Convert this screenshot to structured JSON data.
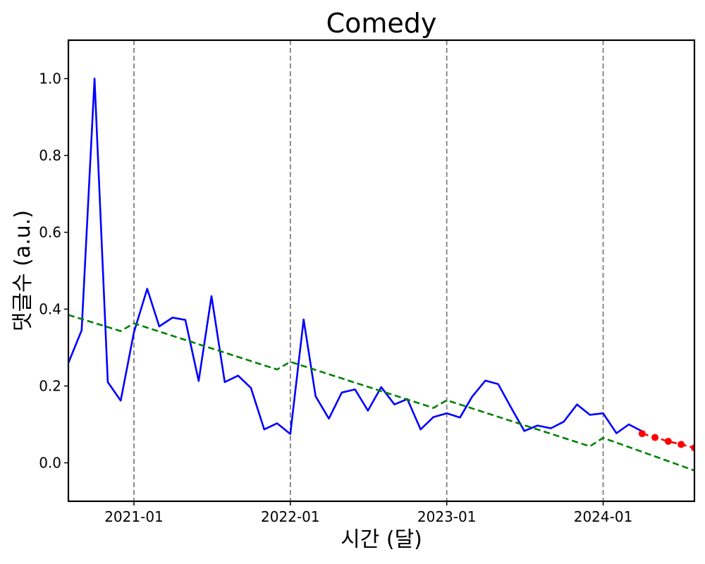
{
  "chart_data": {
    "type": "line",
    "title": "Comedy",
    "xlabel": "시간 (달)",
    "ylabel": "댓글수 (a.u.)",
    "xlim": [
      "2020-08-01",
      "2024-08-01"
    ],
    "ylim": [
      -0.1,
      1.1
    ],
    "y_ticks": [
      "0.0",
      "0.2",
      "0.4",
      "0.6",
      "0.8",
      "1.0"
    ],
    "x_ticks": [
      "2021-01",
      "2022-01",
      "2023-01",
      "2024-01"
    ],
    "vlines": [
      "2021-01",
      "2022-01",
      "2023-01",
      "2024-01"
    ],
    "grid": false,
    "legend": "none",
    "colors": {
      "observed": "#0000ff",
      "trend": "#008000",
      "forecast": "#ff0000",
      "vline": "#808080"
    },
    "series": [
      {
        "role": "observed",
        "style": "solid",
        "x": [
          "2020-08",
          "2020-09",
          "2020-10",
          "2020-11",
          "2020-12",
          "2021-01",
          "2021-02",
          "2021-03",
          "2021-04",
          "2021-05",
          "2021-06",
          "2021-07",
          "2021-08",
          "2021-09",
          "2021-10",
          "2021-11",
          "2021-12",
          "2022-01",
          "2022-02",
          "2022-03",
          "2022-04",
          "2022-05",
          "2022-06",
          "2022-07",
          "2022-08",
          "2022-09",
          "2022-10",
          "2022-11",
          "2022-12",
          "2023-01",
          "2023-02",
          "2023-03",
          "2023-04",
          "2023-05",
          "2023-06",
          "2023-07",
          "2023-08",
          "2023-09",
          "2023-10",
          "2023-11",
          "2023-12",
          "2024-01",
          "2024-02",
          "2024-03",
          "2024-04"
        ],
        "values": [
          0.26,
          0.345,
          1.0,
          0.21,
          0.162,
          0.34,
          0.453,
          0.355,
          0.378,
          0.372,
          0.213,
          0.434,
          0.21,
          0.227,
          0.195,
          0.087,
          0.103,
          0.075,
          0.373,
          0.173,
          0.115,
          0.183,
          0.191,
          0.136,
          0.197,
          0.152,
          0.166,
          0.087,
          0.119,
          0.129,
          0.118,
          0.172,
          0.214,
          0.205,
          0.142,
          0.083,
          0.097,
          0.09,
          0.107,
          0.152,
          0.125,
          0.129,
          0.077,
          0.1,
          0.082
        ]
      },
      {
        "role": "trend",
        "style": "dashed",
        "x": [
          "2020-08",
          "2020-12",
          "2021-01",
          "2021-12",
          "2022-01",
          "2022-12",
          "2023-01",
          "2023-12",
          "2024-01",
          "2024-08"
        ],
        "values": [
          0.385,
          0.343,
          0.363,
          0.243,
          0.263,
          0.143,
          0.163,
          0.043,
          0.065,
          -0.02
        ]
      },
      {
        "role": "forecast",
        "style": "dashed-markers",
        "x": [
          "2024-04",
          "2024-05",
          "2024-06",
          "2024-07",
          "2024-08"
        ],
        "values": [
          0.076,
          0.066,
          0.056,
          0.048,
          0.039
        ]
      }
    ]
  }
}
